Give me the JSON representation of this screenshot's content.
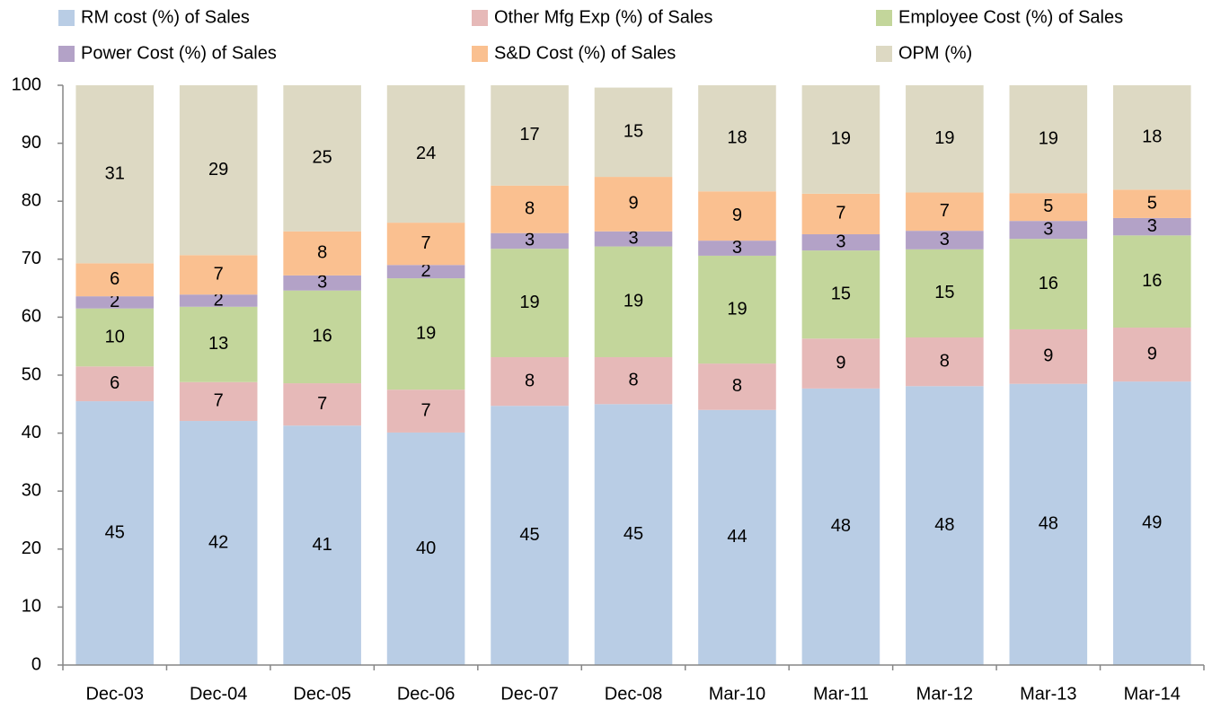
{
  "chart_data": {
    "type": "stacked_bar",
    "categories": [
      "Dec-03",
      "Dec-04",
      "Dec-05",
      "Dec-06",
      "Dec-07",
      "Dec-08",
      "Mar-10",
      "Mar-11",
      "Mar-12",
      "Mar-13",
      "Mar-14"
    ],
    "series": [
      {
        "name": "RM cost (%) of Sales",
        "color": "#b9cde5",
        "values": [
          45.5,
          42.1,
          41.3,
          40.1,
          44.7,
          45.0,
          44.0,
          47.7,
          48.1,
          48.5,
          48.9
        ],
        "value_labels": [
          "45",
          "42",
          "41",
          "40",
          "45",
          "45",
          "44",
          "48",
          "48",
          "48",
          "49"
        ]
      },
      {
        "name": "Other Mfg Exp (%) of Sales",
        "color": "#e6b9b8",
        "values": [
          6.0,
          6.7,
          7.3,
          7.4,
          8.4,
          8.1,
          8.0,
          8.6,
          8.4,
          9.4,
          9.3
        ],
        "value_labels": [
          "6",
          "7",
          "7",
          "7",
          "8",
          "8",
          "8",
          "9",
          "8",
          "9",
          "9"
        ]
      },
      {
        "name": "Employee Cost (%) of Sales",
        "color": "#c3d69b",
        "values": [
          10.0,
          13.0,
          16.0,
          19.2,
          18.7,
          19.1,
          18.6,
          15.2,
          15.2,
          15.6,
          15.9
        ],
        "value_labels": [
          "10",
          "13",
          "16",
          "19",
          "19",
          "19",
          "19",
          "15",
          "15",
          "16",
          "16"
        ]
      },
      {
        "name": "Power Cost (%) of Sales",
        "color": "#b3a2c7",
        "values": [
          2.1,
          2.1,
          2.6,
          2.3,
          2.7,
          2.6,
          2.6,
          2.8,
          3.2,
          3.1,
          3.0
        ],
        "value_labels": [
          "2",
          "2",
          "3",
          "2",
          "3",
          "3",
          "3",
          "3",
          "3",
          "3",
          "3"
        ]
      },
      {
        "name": "S&D Cost (%) of Sales",
        "color": "#fac090",
        "values": [
          5.7,
          6.8,
          7.6,
          7.3,
          8.2,
          9.4,
          8.5,
          7.0,
          6.6,
          4.8,
          4.9
        ],
        "value_labels": [
          "6",
          "7",
          "8",
          "7",
          "8",
          "9",
          "9",
          "7",
          "7",
          "5",
          "5"
        ]
      },
      {
        "name": "OPM (%)",
        "color": "#ddd9c3",
        "values": [
          30.7,
          29.3,
          25.2,
          23.7,
          17.3,
          15.4,
          18.3,
          18.7,
          18.5,
          18.6,
          18.0
        ],
        "value_labels": [
          "31",
          "29",
          "25",
          "24",
          "17",
          "15",
          "18",
          "19",
          "19",
          "19",
          "18"
        ]
      }
    ],
    "ylim": [
      0,
      100
    ],
    "yticks": [
      0,
      10,
      20,
      30,
      40,
      50,
      60,
      70,
      80,
      90,
      100
    ],
    "grid": false,
    "legend": "top"
  }
}
